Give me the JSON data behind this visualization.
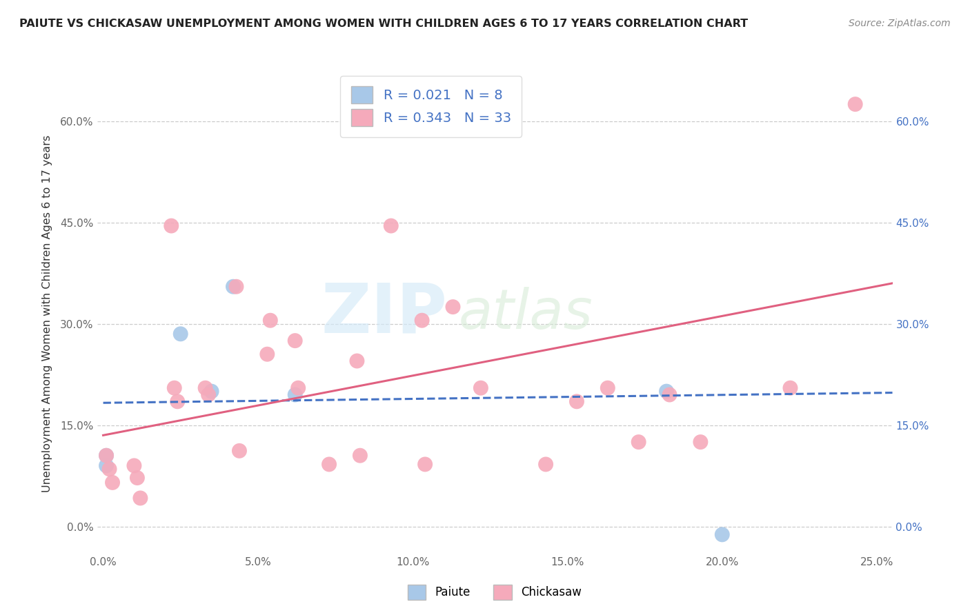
{
  "title": "PAIUTE VS CHICKASAW UNEMPLOYMENT AMONG WOMEN WITH CHILDREN AGES 6 TO 17 YEARS CORRELATION CHART",
  "source": "Source: ZipAtlas.com",
  "ylabel": "Unemployment Among Women with Children Ages 6 to 17 years",
  "xlim": [
    -0.002,
    0.255
  ],
  "ylim": [
    -0.04,
    0.67
  ],
  "x_ticks": [
    0.0,
    0.05,
    0.1,
    0.15,
    0.2,
    0.25
  ],
  "x_tick_labels": [
    "0.0%",
    "5.0%",
    "10.0%",
    "15.0%",
    "20.0%",
    "25.0%"
  ],
  "y_ticks": [
    0.0,
    0.15,
    0.3,
    0.45,
    0.6
  ],
  "y_tick_labels": [
    "0.0%",
    "15.0%",
    "30.0%",
    "45.0%",
    "60.0%"
  ],
  "paiute_color": "#a8c8e8",
  "chickasaw_color": "#f5aabb",
  "paiute_line_color": "#4472c4",
  "chickasaw_line_color": "#e06080",
  "legend_paiute_label": "Paiute",
  "legend_chickasaw_label": "Chickasaw",
  "R_paiute": 0.021,
  "N_paiute": 8,
  "R_chickasaw": 0.343,
  "N_chickasaw": 33,
  "background_color": "#ffffff",
  "grid_color": "#cccccc",
  "paiute_x": [
    0.001,
    0.001,
    0.025,
    0.035,
    0.042,
    0.062,
    0.182,
    0.2
  ],
  "paiute_y": [
    0.105,
    0.09,
    0.285,
    0.2,
    0.355,
    0.195,
    0.2,
    -0.012
  ],
  "chickasaw_x": [
    0.001,
    0.002,
    0.003,
    0.01,
    0.011,
    0.012,
    0.022,
    0.023,
    0.024,
    0.033,
    0.034,
    0.043,
    0.044,
    0.053,
    0.054,
    0.062,
    0.063,
    0.073,
    0.082,
    0.083,
    0.093,
    0.103,
    0.104,
    0.113,
    0.122,
    0.143,
    0.153,
    0.163,
    0.173,
    0.183,
    0.193,
    0.222,
    0.243
  ],
  "chickasaw_y": [
    0.105,
    0.085,
    0.065,
    0.09,
    0.072,
    0.042,
    0.445,
    0.205,
    0.185,
    0.205,
    0.195,
    0.355,
    0.112,
    0.255,
    0.305,
    0.275,
    0.205,
    0.092,
    0.245,
    0.105,
    0.445,
    0.305,
    0.092,
    0.325,
    0.205,
    0.092,
    0.185,
    0.205,
    0.125,
    0.195,
    0.125,
    0.205,
    0.625
  ],
  "paiute_trend_x": [
    0.0,
    0.255
  ],
  "paiute_trend_y": [
    0.183,
    0.198
  ],
  "chickasaw_trend_x": [
    0.0,
    0.255
  ],
  "chickasaw_trend_y": [
    0.135,
    0.36
  ]
}
